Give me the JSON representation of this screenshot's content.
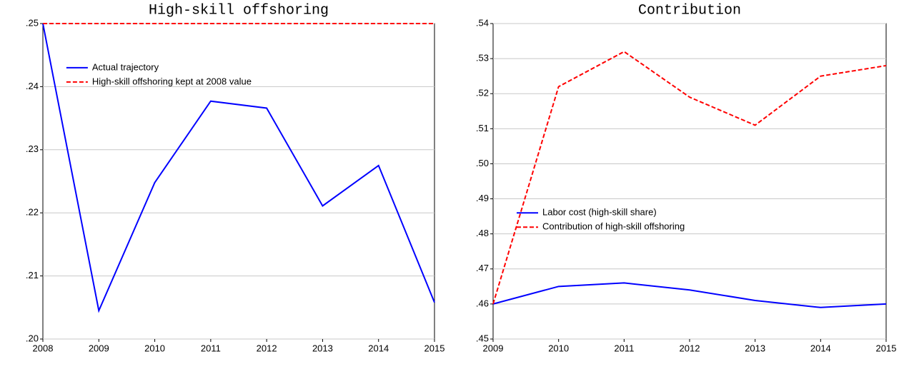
{
  "chart_data": [
    {
      "type": "line",
      "title": "High-skill offshoring",
      "categories": [
        "2008",
        "2009",
        "2010",
        "2011",
        "2012",
        "2013",
        "2014",
        "2015"
      ],
      "series": [
        {
          "name": "Actual trajectory",
          "color": "#0000ff",
          "dash": false,
          "values": [
            0.25,
            0.2045,
            0.2248,
            0.2377,
            0.2366,
            0.2211,
            0.2275,
            0.2058
          ]
        },
        {
          "name": "High-skill offshoring kept at 2008 value",
          "color": "#ff0000",
          "dash": true,
          "values": [
            0.25,
            0.25,
            0.25,
            0.25,
            0.25,
            0.25,
            0.25,
            0.25
          ]
        }
      ],
      "ylim": [
        0.2,
        0.25
      ],
      "yticks": [
        {
          "value": 0.2,
          "label": ".20"
        },
        {
          "value": 0.21,
          "label": ".21"
        },
        {
          "value": 0.22,
          "label": ".22"
        },
        {
          "value": 0.23,
          "label": ".23"
        },
        {
          "value": 0.24,
          "label": ".24"
        },
        {
          "value": 0.25,
          "label": ".25"
        }
      ],
      "grid": true,
      "legend": "upper-left"
    },
    {
      "type": "line",
      "title": "Contribution",
      "categories": [
        "2009",
        "2010",
        "2011",
        "2012",
        "2013",
        "2014",
        "2015"
      ],
      "series": [
        {
          "name": "Labor cost (high-skill share)",
          "color": "#0000ff",
          "dash": false,
          "values": [
            0.46,
            0.465,
            0.466,
            0.464,
            0.461,
            0.459,
            0.46
          ]
        },
        {
          "name": "Contribution of high-skill offshoring",
          "color": "#ff0000",
          "dash": true,
          "values": [
            0.46,
            0.522,
            0.532,
            0.519,
            0.511,
            0.525,
            0.528
          ]
        }
      ],
      "ylim": [
        0.45,
        0.54
      ],
      "yticks": [
        {
          "value": 0.45,
          "label": ".45"
        },
        {
          "value": 0.46,
          "label": ".46"
        },
        {
          "value": 0.47,
          "label": ".47"
        },
        {
          "value": 0.48,
          "label": ".48"
        },
        {
          "value": 0.49,
          "label": ".49"
        },
        {
          "value": 0.5,
          "label": ".50"
        },
        {
          "value": 0.51,
          "label": ".51"
        },
        {
          "value": 0.52,
          "label": ".52"
        },
        {
          "value": 0.53,
          "label": ".53"
        },
        {
          "value": 0.54,
          "label": ".54"
        }
      ],
      "grid": true,
      "legend": "middle-left"
    }
  ]
}
